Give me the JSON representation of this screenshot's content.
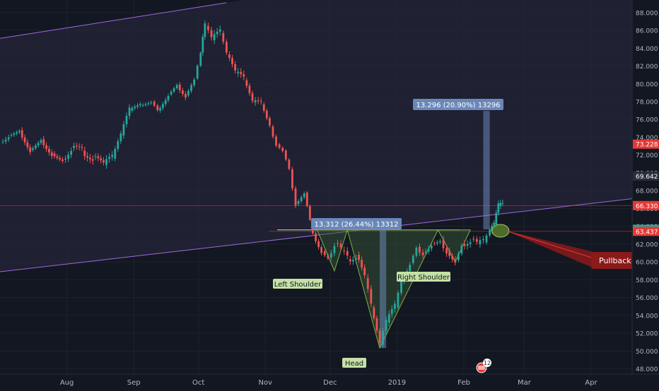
{
  "chart_data": {
    "type": "candlestick",
    "y_axis": {
      "range": [
        47.3,
        89.1
      ],
      "tick_labels": [
        "48.000",
        "50.000",
        "52.000",
        "54.000",
        "56.000",
        "58.000",
        "60.000",
        "62.000",
        "64.000",
        "66.000",
        "68.000",
        "70.000",
        "72.000",
        "74.000",
        "76.000",
        "78.000",
        "80.000",
        "82.000",
        "84.000",
        "86.000",
        "88.000"
      ],
      "tick_values": [
        48,
        50,
        52,
        54,
        56,
        58,
        60,
        62,
        64,
        66,
        68,
        70,
        72,
        74,
        76,
        78,
        80,
        82,
        84,
        86,
        88
      ]
    },
    "x_axis": {
      "tick_labels": [
        "Aug",
        "Sep",
        "Oct",
        "Nov",
        "Dec",
        "2019",
        "Feb",
        "Mar",
        "Apr"
      ],
      "tick_dates": [
        "2018-08-01",
        "2018-09-01",
        "2018-10-01",
        "2018-11-01",
        "2018-12-01",
        "2019-01-01",
        "2019-02-01",
        "2019-03-01",
        "2019-04-01"
      ],
      "range": [
        "2018-07-01",
        "2019-04-20"
      ]
    },
    "price_labels": [
      {
        "text": "73.228",
        "value": 73.228,
        "color": "#e53935"
      },
      {
        "text": "69.642",
        "value": 69.642,
        "color": "#2a2e39"
      },
      {
        "text": "66.330",
        "value": 66.33,
        "color": "#e53935"
      },
      {
        "text": "63.666",
        "value": 63.666,
        "color": "#26a69a"
      },
      {
        "text": "63.437",
        "value": 63.437,
        "color": "#e53935"
      }
    ],
    "horizontal_lines": [
      66.33,
      63.437
    ],
    "close_series": [
      {
        "date": "2018-07-01",
        "close": 73.5
      },
      {
        "date": "2018-07-05",
        "close": 74.2
      },
      {
        "date": "2018-07-10",
        "close": 74.8
      },
      {
        "date": "2018-07-15",
        "close": 72.6
      },
      {
        "date": "2018-07-20",
        "close": 73.8
      },
      {
        "date": "2018-07-25",
        "close": 72.2
      },
      {
        "date": "2018-07-30",
        "close": 71.5
      },
      {
        "date": "2018-08-03",
        "close": 72.8
      },
      {
        "date": "2018-08-08",
        "close": 72.5
      },
      {
        "date": "2018-08-13",
        "close": 71.8
      },
      {
        "date": "2018-08-18",
        "close": 70.9
      },
      {
        "date": "2018-08-22",
        "close": 71.6
      },
      {
        "date": "2018-08-26",
        "close": 74.2
      },
      {
        "date": "2018-08-30",
        "close": 77.0
      },
      {
        "date": "2018-09-04",
        "close": 77.6
      },
      {
        "date": "2018-09-09",
        "close": 78.0
      },
      {
        "date": "2018-09-12",
        "close": 77.0
      },
      {
        "date": "2018-09-17",
        "close": 78.8
      },
      {
        "date": "2018-09-21",
        "close": 79.9
      },
      {
        "date": "2018-09-25",
        "close": 78.7
      },
      {
        "date": "2018-09-29",
        "close": 80.6
      },
      {
        "date": "2018-10-02",
        "close": 83.5
      },
      {
        "date": "2018-10-04",
        "close": 86.5
      },
      {
        "date": "2018-10-07",
        "close": 84.9
      },
      {
        "date": "2018-10-11",
        "close": 85.7
      },
      {
        "date": "2018-10-14",
        "close": 83.3
      },
      {
        "date": "2018-10-18",
        "close": 81.2
      },
      {
        "date": "2018-10-22",
        "close": 80.4
      },
      {
        "date": "2018-10-26",
        "close": 77.9
      },
      {
        "date": "2018-10-30",
        "close": 77.7
      },
      {
        "date": "2018-11-03",
        "close": 75.2
      },
      {
        "date": "2018-11-06",
        "close": 73.2
      },
      {
        "date": "2018-11-09",
        "close": 72.5
      },
      {
        "date": "2018-11-12",
        "close": 70.4
      },
      {
        "date": "2018-11-15",
        "close": 66.5
      },
      {
        "date": "2018-11-19",
        "close": 67.8
      },
      {
        "date": "2018-11-23",
        "close": 63.2
      },
      {
        "date": "2018-11-27",
        "close": 61.2
      },
      {
        "date": "2018-11-30",
        "close": 60.5
      },
      {
        "date": "2018-12-03",
        "close": 62.1
      },
      {
        "date": "2018-12-06",
        "close": 61.3
      },
      {
        "date": "2018-12-09",
        "close": 60.3
      },
      {
        "date": "2018-12-13",
        "close": 60.8
      },
      {
        "date": "2018-12-17",
        "close": 58.2
      },
      {
        "date": "2018-12-20",
        "close": 54.9
      },
      {
        "date": "2018-12-24",
        "close": 50.7
      },
      {
        "date": "2018-12-27",
        "close": 53.2
      },
      {
        "date": "2018-12-31",
        "close": 54.9
      },
      {
        "date": "2019-01-03",
        "close": 57.8
      },
      {
        "date": "2019-01-07",
        "close": 59.9
      },
      {
        "date": "2019-01-10",
        "close": 61.7
      },
      {
        "date": "2019-01-13",
        "close": 61.1
      },
      {
        "date": "2019-01-17",
        "close": 62.1
      },
      {
        "date": "2019-01-21",
        "close": 62.5
      },
      {
        "date": "2019-01-24",
        "close": 61.3
      },
      {
        "date": "2019-01-28",
        "close": 60.2
      },
      {
        "date": "2019-01-31",
        "close": 62.0
      },
      {
        "date": "2019-02-04",
        "close": 62.6
      },
      {
        "date": "2019-02-07",
        "close": 62.0
      },
      {
        "date": "2019-02-10",
        "close": 62.2
      },
      {
        "date": "2019-02-13",
        "close": 63.5
      },
      {
        "date": "2019-02-15",
        "close": 64.2
      },
      {
        "date": "2019-02-17",
        "close": 66.3
      },
      {
        "date": "2019-02-19",
        "close": 66.3
      }
    ],
    "trend_channel": {
      "upper": [
        {
          "date": "2018-07-01",
          "value": 85.1
        },
        {
          "date": "2018-10-14",
          "value": 89.1
        }
      ],
      "lower": [
        {
          "date": "2018-07-01",
          "value": 58.9
        },
        {
          "date": "2019-04-20",
          "value": 67.1
        }
      ]
    },
    "measurements": [
      {
        "label": "13.312 (26.44%) 13312",
        "from": 50.35,
        "to": 63.66,
        "start": "2018-12-24",
        "end": "2018-12-27"
      },
      {
        "label": "13.296 (20.90%) 13296",
        "from": 63.66,
        "to": 76.96,
        "start": "2019-02-10",
        "end": "2019-02-13"
      }
    ],
    "pattern": {
      "left_shoulder_label": "Left Shoulder",
      "head_label": "Head",
      "right_shoulder_label": "Right Shoulder",
      "neckline": 63.6,
      "head_triangle": [
        {
          "date": "2018-12-09",
          "value": 63.6
        },
        {
          "date": "2018-12-24",
          "value": 50.35
        },
        {
          "date": "2019-01-20",
          "value": 63.6
        }
      ],
      "left_shoulder_triangle": [
        {
          "date": "2018-11-25",
          "value": 63.6
        },
        {
          "date": "2018-12-03",
          "value": 59.0
        },
        {
          "date": "2018-12-09",
          "value": 63.6
        }
      ],
      "right_shoulder_triangle": [
        {
          "date": "2019-01-20",
          "value": 63.6
        },
        {
          "date": "2019-01-28",
          "value": 60.0
        },
        {
          "date": "2019-02-04",
          "value": 63.6
        }
      ]
    },
    "pullback": {
      "label": "Pullback",
      "target_date": "2019-02-18",
      "target_value": 63.5
    }
  },
  "event_badge": {
    "count": "12",
    "color": "#e53935"
  },
  "colors": {
    "up": "#26a69a",
    "down": "#ef5350",
    "channel": "#9c6ade",
    "measure": "#6a87b8",
    "pattern_fill": "#3a5a3a",
    "pullback": "#8b1a1a"
  }
}
